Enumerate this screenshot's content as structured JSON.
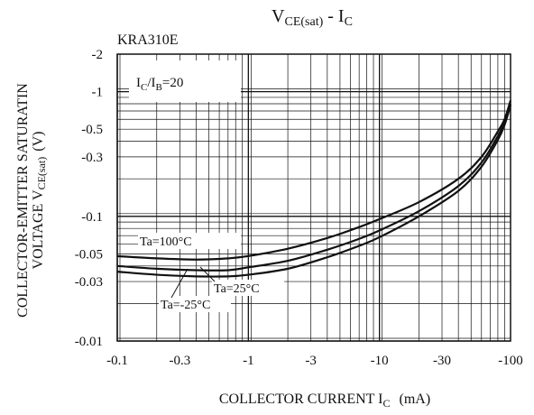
{
  "chart_data": {
    "type": "line",
    "title": {
      "main": "V",
      "main_sub": "CE(sat)",
      "sep": " - I",
      "tail_sub": "C"
    },
    "device": "KRA310E",
    "condition": {
      "a": "I",
      "a_sub": "C",
      "slash": "/I",
      "b_sub": "B",
      "tail": "=20"
    },
    "xlabel": {
      "main": "COLLECTOR CURRENT I",
      "sub": "C",
      "unit": "(mA)"
    },
    "ylabel": {
      "line1": "COLLECTOR-EMITTER SATURATIN",
      "line2_pre": "VOLTAGE V",
      "line2_sub": "CE(sat)",
      "line2_unit": "(V)"
    },
    "x_scale": "log",
    "y_scale": "log",
    "xlim": [
      -0.1,
      -100
    ],
    "ylim": [
      -0.01,
      -2
    ],
    "x_ticks": [
      {
        "value": -0.1,
        "label": "-0.1"
      },
      {
        "value": -0.3,
        "label": "-0.3"
      },
      {
        "value": -1,
        "label": "-1"
      },
      {
        "value": -3,
        "label": "-3"
      },
      {
        "value": -10,
        "label": "-10"
      },
      {
        "value": -30,
        "label": "-30"
      },
      {
        "value": -100,
        "label": "-100"
      }
    ],
    "y_ticks": [
      {
        "value": -0.01,
        "label": "-0.01"
      },
      {
        "value": -0.03,
        "label": "-0.03"
      },
      {
        "value": -0.05,
        "label": "-0.05"
      },
      {
        "value": -0.1,
        "label": "-0.1"
      },
      {
        "value": -0.3,
        "label": "-0.3"
      },
      {
        "value": -0.5,
        "label": "-0.5"
      },
      {
        "value": -1,
        "label": "-1"
      },
      {
        "value": -2,
        "label": "-2"
      }
    ],
    "grid": true,
    "series": [
      {
        "name": "Ta=100°C",
        "color": "#111111",
        "x": [
          -0.1,
          -0.2,
          -0.4,
          -0.7,
          -1,
          -2,
          -4,
          -7,
          -10,
          -20,
          -40,
          -60,
          -80,
          -90,
          -100
        ],
        "y": [
          -0.048,
          -0.046,
          -0.045,
          -0.046,
          -0.048,
          -0.055,
          -0.067,
          -0.082,
          -0.095,
          -0.13,
          -0.2,
          -0.3,
          -0.48,
          -0.6,
          -0.85
        ]
      },
      {
        "name": "Ta=25°C",
        "color": "#111111",
        "x": [
          -0.1,
          -0.2,
          -0.4,
          -0.7,
          -1,
          -2,
          -4,
          -7,
          -10,
          -20,
          -40,
          -60,
          -80,
          -90,
          -100
        ],
        "y": [
          -0.04,
          -0.038,
          -0.037,
          -0.037,
          -0.039,
          -0.044,
          -0.054,
          -0.066,
          -0.077,
          -0.11,
          -0.175,
          -0.27,
          -0.44,
          -0.57,
          -0.8
        ]
      },
      {
        "name": "Ta=-25°C",
        "color": "#111111",
        "x": [
          -0.1,
          -0.2,
          -0.4,
          -0.7,
          -1,
          -2,
          -4,
          -7,
          -10,
          -20,
          -40,
          -60,
          -80,
          -90,
          -100
        ],
        "y": [
          -0.036,
          -0.034,
          -0.033,
          -0.033,
          -0.034,
          -0.038,
          -0.047,
          -0.058,
          -0.068,
          -0.1,
          -0.16,
          -0.25,
          -0.41,
          -0.54,
          -0.78
        ]
      }
    ],
    "annotations": [
      {
        "label": "Ta=100°C",
        "series": 0
      },
      {
        "label": "Ta=25°C",
        "series": 1
      },
      {
        "label": "Ta=-25°C",
        "series": 2
      }
    ]
  }
}
